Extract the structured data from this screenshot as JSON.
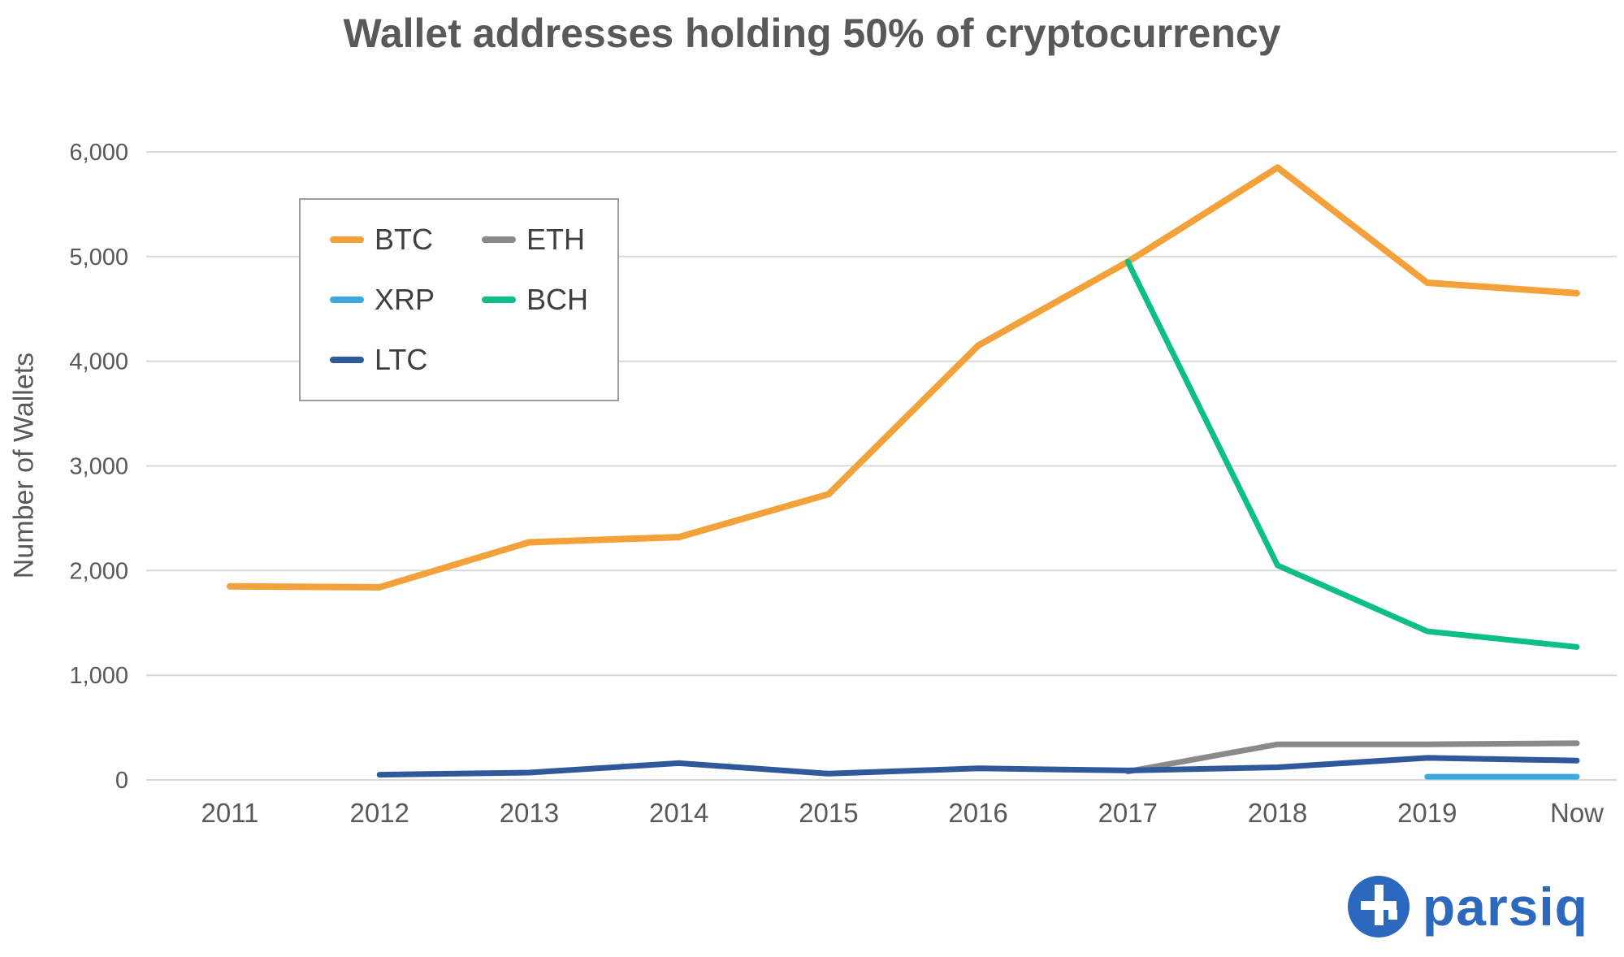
{
  "brand": {
    "name": "parsiq",
    "color": "#2D68BF"
  },
  "chart_data": {
    "type": "line",
    "title": "Wallet addresses holding 50% of cryptocurrency",
    "ylabel": "Number of Wallets",
    "categories": [
      "2011",
      "2012",
      "2013",
      "2014",
      "2015",
      "2016",
      "2017",
      "2018",
      "2019",
      "Now"
    ],
    "ylim": [
      0,
      6000
    ],
    "ytick_step": 1000,
    "ytick_labels": [
      "0",
      "1,000",
      "2,000",
      "3,000",
      "4,000",
      "5,000",
      "6,000"
    ],
    "grid": true,
    "legend_position": "upper-left",
    "legend_columns": [
      [
        "BTC",
        "XRP",
        "LTC"
      ],
      [
        "ETH",
        "BCH"
      ]
    ],
    "series": [
      {
        "name": "BTC",
        "color": "#F3A23B",
        "values": [
          1850,
          1840,
          2270,
          2320,
          2730,
          4150,
          4950,
          5850,
          4750,
          4650
        ]
      },
      {
        "name": "ETH",
        "color": "#8A8A8A",
        "values": [
          null,
          null,
          null,
          null,
          null,
          null,
          80,
          340,
          340,
          350
        ]
      },
      {
        "name": "XRP",
        "color": "#3BA9DE",
        "values": [
          null,
          null,
          null,
          null,
          null,
          null,
          null,
          null,
          30,
          30
        ]
      },
      {
        "name": "BCH",
        "color": "#0DBE86",
        "values": [
          null,
          null,
          null,
          null,
          null,
          null,
          4950,
          2050,
          1420,
          1270
        ]
      },
      {
        "name": "LTC",
        "color": "#30599B",
        "values": [
          null,
          50,
          70,
          160,
          60,
          110,
          90,
          120,
          210,
          185
        ]
      }
    ]
  }
}
